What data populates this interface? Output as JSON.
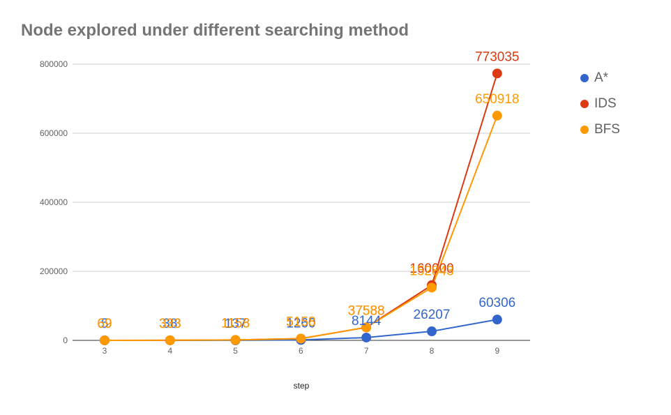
{
  "chart_data": {
    "type": "line",
    "title": "Node explored under different searching method",
    "xlabel": "step",
    "ylabel": "",
    "x": [
      3,
      4,
      5,
      6,
      7,
      8,
      9
    ],
    "ylim": [
      0,
      800000
    ],
    "yticks": [
      0,
      200000,
      400000,
      600000,
      800000
    ],
    "grid": true,
    "legend_position": "right",
    "series": [
      {
        "name": "A*",
        "color": "#3366cc",
        "values": [
          5,
          38,
          137,
          1260,
          8144,
          26207,
          60306
        ],
        "labels": [
          "5",
          "38",
          "137",
          "1260",
          "8144",
          "26207",
          "60306"
        ]
      },
      {
        "name": "IDS",
        "color": "#dc3912",
        "values": [
          69,
          333,
          1158,
          5158,
          37588,
          160000,
          773035
        ],
        "labels": [
          "69",
          "333",
          "1158",
          "5158",
          "37588",
          "160000",
          "773035"
        ]
      },
      {
        "name": "BFS",
        "color": "#ff9900",
        "values": [
          69,
          333,
          1158,
          5158,
          37588,
          152843,
          650918
        ],
        "labels": [
          "69",
          "333",
          "1158",
          "5158",
          "37588",
          "152843",
          "650918"
        ]
      }
    ]
  }
}
